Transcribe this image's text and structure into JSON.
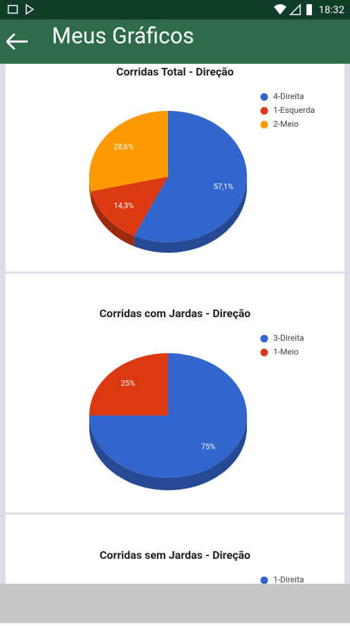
{
  "status_bar": {
    "time": "18:32"
  },
  "app_bar": {
    "title": "Meus Gráficos"
  },
  "chart_data": [
    {
      "type": "pie",
      "title": "Corridas Total - Direção",
      "categories": [
        "4-Direita",
        "1-Esquerda",
        "2-Meio"
      ],
      "values": [
        57.1,
        14.3,
        28.6
      ],
      "value_labels": [
        "57,1%",
        "14,3%",
        "28,6%"
      ],
      "colors": [
        "#3366cc",
        "#dc3912",
        "#ff9900"
      ]
    },
    {
      "type": "pie",
      "title": "Corridas com Jardas - Direção",
      "categories": [
        "3-Direita",
        "1-Meio"
      ],
      "values": [
        75,
        25
      ],
      "value_labels": [
        "75%",
        "25%"
      ],
      "colors": [
        "#3366cc",
        "#dc3912"
      ]
    },
    {
      "type": "pie",
      "title": "Corridas sem Jardas - Direção",
      "categories": [
        "1-Direita"
      ],
      "colors": [
        "#3366cc"
      ]
    }
  ]
}
